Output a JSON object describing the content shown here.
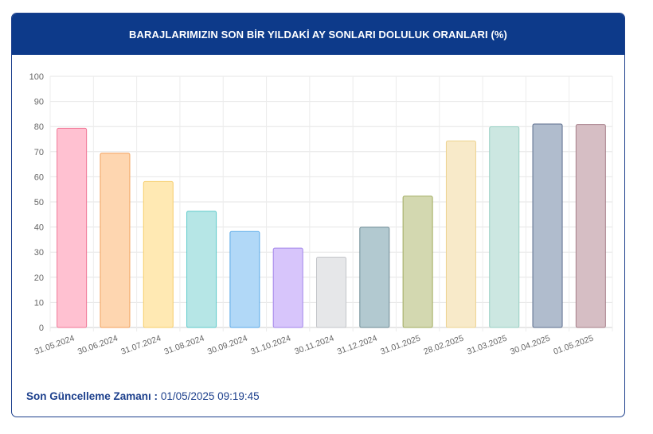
{
  "header": {
    "title": "BARAJLARIMIZIN SON BİR YILDAKİ AY SONLARI DOLULUK ORANLARI (%)"
  },
  "footer": {
    "label": "Son Güncelleme Zamanı :",
    "value": "01/05/2025 09:19:45"
  },
  "chart_data": {
    "type": "bar",
    "title": "BARAJLARIMIZIN SON BİR YILDAKİ AY SONLARI DOLULUK ORANLARI (%)",
    "xlabel": "",
    "ylabel": "",
    "ylim": [
      0,
      100
    ],
    "yticks": [
      0,
      10,
      20,
      30,
      40,
      50,
      60,
      70,
      80,
      90,
      100
    ],
    "grid": true,
    "legend": "none",
    "categories": [
      "31.05.2024",
      "30.06.2024",
      "31.07.2024",
      "31.08.2024",
      "30.09.2024",
      "31.10.2024",
      "30.11.2024",
      "31.12.2024",
      "31.01.2025",
      "28.02.2025",
      "31.03.2025",
      "30.04.2025",
      "01.05.2025"
    ],
    "values": [
      79.3,
      69.4,
      58.1,
      46.3,
      38.2,
      31.6,
      28.0,
      39.9,
      52.3,
      74.3,
      79.9,
      81.0,
      80.8
    ],
    "fills": [
      "#ffc1d1",
      "#fed6b0",
      "#ffe9b3",
      "#b6e6e6",
      "#b1d8f7",
      "#d7c5fb",
      "#e6e7e9",
      "#b2c9d0",
      "#d3d8b0",
      "#f8eac9",
      "#cce7e1",
      "#b0bccd",
      "#d6bec4"
    ],
    "strokes": [
      "#f07595",
      "#f3a15c",
      "#f6cd6a",
      "#5dcaca",
      "#59a9e8",
      "#a184ea",
      "#c3c5c9",
      "#6c8a94",
      "#a1ab5f",
      "#ecd390",
      "#97cfc3",
      "#5b6d8d",
      "#a67f89"
    ]
  }
}
